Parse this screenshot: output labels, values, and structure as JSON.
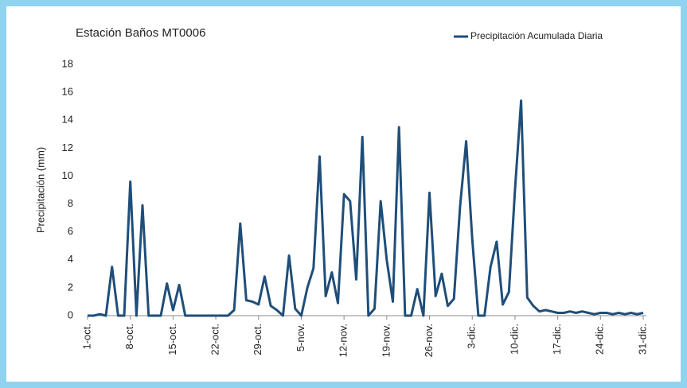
{
  "chart_data": {
    "type": "line",
    "title": "Estación Baños MT0006",
    "y_label": "Precipitación (mm)",
    "categories": [
      "1-oct.",
      null,
      null,
      null,
      null,
      null,
      null,
      "8-oct.",
      null,
      null,
      null,
      null,
      null,
      null,
      "15-oct.",
      null,
      null,
      null,
      null,
      null,
      null,
      "22-oct.",
      null,
      null,
      null,
      null,
      null,
      null,
      "29-oct.",
      null,
      null,
      null,
      null,
      null,
      null,
      "5-nov.",
      null,
      null,
      null,
      null,
      null,
      null,
      "12-nov.",
      null,
      null,
      null,
      null,
      null,
      null,
      "19-nov.",
      null,
      null,
      null,
      null,
      null,
      null,
      "26-nov.",
      null,
      null,
      null,
      null,
      null,
      null,
      "3-dic.",
      null,
      null,
      null,
      null,
      null,
      null,
      "10-dic.",
      null,
      null,
      null,
      null,
      null,
      null,
      "17-dic.",
      null,
      null,
      null,
      null,
      null,
      null,
      "24-dic.",
      null,
      null,
      null,
      null,
      null,
      null,
      "31-dic."
    ],
    "series": [
      {
        "name": "Precipitación Acumulada Diaria",
        "color": "#1f4e79",
        "values": [
          0,
          0,
          0.1,
          0,
          3.5,
          0,
          0,
          9.6,
          0,
          7.9,
          0,
          0,
          0,
          2.3,
          0.4,
          2.2,
          0,
          0,
          0,
          0,
          0,
          0,
          0,
          0,
          0.4,
          6.6,
          1.1,
          1.0,
          0.8,
          2.8,
          0.7,
          0.4,
          0,
          4.3,
          0.5,
          0,
          2.0,
          3.4,
          11.4,
          1.4,
          3.1,
          0.9,
          8.7,
          8.2,
          2.6,
          12.8,
          0,
          0.5,
          8.2,
          4.0,
          1.0,
          13.5,
          0,
          0,
          1.9,
          0,
          8.8,
          1.4,
          3.0,
          0.7,
          1.2,
          7.8,
          12.5,
          5.5,
          0,
          0,
          3.5,
          5.3,
          0.8,
          1.7,
          9.0,
          15.4,
          1.3,
          0.7,
          0.3,
          0.4,
          0.3,
          0.2,
          0.2,
          0.3,
          0.2,
          0.3,
          0.2,
          0.1,
          0.2,
          0.2,
          0.1,
          0.2,
          0.1,
          0.2,
          0.1,
          0.2
        ]
      }
    ],
    "ylim": [
      0,
      18
    ],
    "yticks": [
      0,
      2,
      4,
      6,
      8,
      10,
      12,
      14,
      16,
      18
    ],
    "legend": "top-right"
  }
}
